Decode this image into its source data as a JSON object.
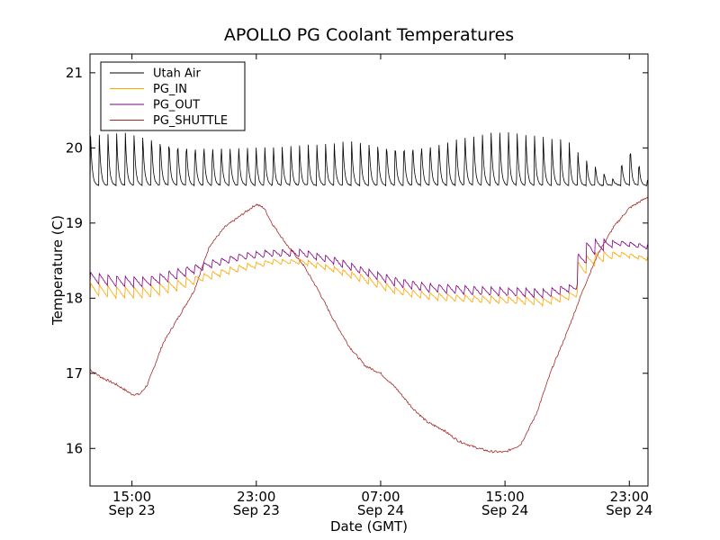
{
  "chart_data": {
    "type": "line",
    "title": "APOLLO PG Coolant Temperatures",
    "xlabel": "Date (GMT)",
    "ylabel": "Temperature (C)",
    "x_unit": "hours since 2014-09-23 10:00 GMT",
    "xlim": [
      2.3,
      38.2
    ],
    "ylim": [
      15.5,
      21.25
    ],
    "grid": false,
    "legend_position": "top-left",
    "x_ticks": [
      {
        "x": 5,
        "time": "15:00",
        "date": "Sep 23"
      },
      {
        "x": 13,
        "time": "23:00",
        "date": "Sep 23"
      },
      {
        "x": 21,
        "time": "07:00",
        "date": "Sep 24"
      },
      {
        "x": 29,
        "time": "15:00",
        "date": "Sep 24"
      },
      {
        "x": 37,
        "time": "23:00",
        "date": "Sep 24"
      }
    ],
    "y_ticks": [
      16,
      17,
      18,
      19,
      20,
      21
    ],
    "series": [
      {
        "name": "Utah Air",
        "color": "#000000",
        "style": "sawtooth",
        "period_hours": 0.56,
        "x": [
          2.3,
          4,
          6,
          8,
          10,
          12,
          14,
          16,
          18,
          20,
          22,
          24,
          25,
          26,
          27,
          28,
          29,
          30,
          31,
          32,
          33,
          34,
          35,
          36,
          37,
          38.2
        ],
        "baseline": [
          19.5,
          19.5,
          19.5,
          19.5,
          19.5,
          19.5,
          19.5,
          19.5,
          19.5,
          19.5,
          19.5,
          19.5,
          19.5,
          19.5,
          19.5,
          19.5,
          19.5,
          19.5,
          19.5,
          19.5,
          19.5,
          19.5,
          19.5,
          19.5,
          19.5,
          19.5
        ],
        "peak": [
          20.2,
          20.2,
          20.2,
          20.15,
          20.12,
          20.1,
          20.08,
          20.08,
          20.08,
          20.1,
          20.12,
          20.15,
          20.2,
          20.25,
          20.28,
          20.3,
          20.3,
          20.25,
          20.2,
          20.15,
          20.1,
          19.9,
          19.75,
          19.6,
          20.1,
          19.6
        ]
      },
      {
        "name": "PG_IN",
        "color": "#ffa500",
        "style": "sawtooth",
        "period_hours": 0.56,
        "x": [
          2.3,
          4,
          6,
          8,
          10,
          12,
          14,
          16,
          18,
          20,
          22,
          24,
          26,
          28,
          30,
          31.5,
          33.6,
          33.7,
          34.5,
          35.5,
          36.5,
          38.2
        ],
        "baseline": [
          18.05,
          18.0,
          18.0,
          18.1,
          18.25,
          18.35,
          18.45,
          18.45,
          18.35,
          18.2,
          18.05,
          17.98,
          17.95,
          17.93,
          17.92,
          17.9,
          18.0,
          18.2,
          18.4,
          18.5,
          18.55,
          18.5
        ],
        "peak": [
          18.2,
          18.15,
          18.15,
          18.25,
          18.35,
          18.45,
          18.52,
          18.52,
          18.42,
          18.3,
          18.15,
          18.08,
          18.05,
          18.03,
          18.02,
          18.0,
          18.1,
          18.5,
          18.6,
          18.62,
          18.62,
          18.55
        ]
      },
      {
        "name": "PG_OUT",
        "color": "#800080",
        "style": "sawtooth",
        "period_hours": 0.56,
        "x": [
          2.3,
          4,
          6,
          8,
          10,
          12,
          14,
          16,
          18,
          20,
          22,
          24,
          26,
          28,
          30,
          31.5,
          33.6,
          33.7,
          34.5,
          35.5,
          36.5,
          38.2
        ],
        "baseline": [
          18.2,
          18.15,
          18.15,
          18.25,
          18.4,
          18.5,
          18.55,
          18.55,
          18.45,
          18.3,
          18.15,
          18.08,
          18.05,
          18.03,
          18.02,
          18.0,
          18.1,
          18.3,
          18.55,
          18.65,
          18.7,
          18.65
        ],
        "peak": [
          18.35,
          18.3,
          18.28,
          18.4,
          18.5,
          18.6,
          18.65,
          18.65,
          18.55,
          18.4,
          18.28,
          18.2,
          18.18,
          18.15,
          18.14,
          18.12,
          18.2,
          18.6,
          18.8,
          18.78,
          18.76,
          18.72
        ]
      },
      {
        "name": "PG_SHUTTLE",
        "color": "#a52a2a",
        "style": "line",
        "x": [
          2.3,
          3,
          4,
          5,
          5.5,
          6,
          7,
          8,
          9,
          10,
          11,
          12,
          13,
          13.5,
          14,
          15,
          16,
          17,
          18,
          19,
          20,
          21,
          22,
          23,
          24,
          25,
          26,
          27,
          28,
          29,
          30,
          31,
          32,
          33,
          34,
          35,
          36,
          37,
          38.2
        ],
        "values": [
          17.05,
          16.95,
          16.85,
          16.72,
          16.72,
          16.85,
          17.4,
          17.75,
          18.1,
          18.7,
          18.95,
          19.1,
          19.25,
          19.2,
          19.0,
          18.7,
          18.45,
          18.1,
          17.7,
          17.35,
          17.1,
          17.0,
          16.8,
          16.55,
          16.35,
          16.25,
          16.1,
          16.02,
          15.96,
          15.95,
          16.05,
          16.45,
          17.05,
          17.55,
          18.1,
          18.6,
          18.95,
          19.2,
          19.35
        ]
      }
    ]
  }
}
